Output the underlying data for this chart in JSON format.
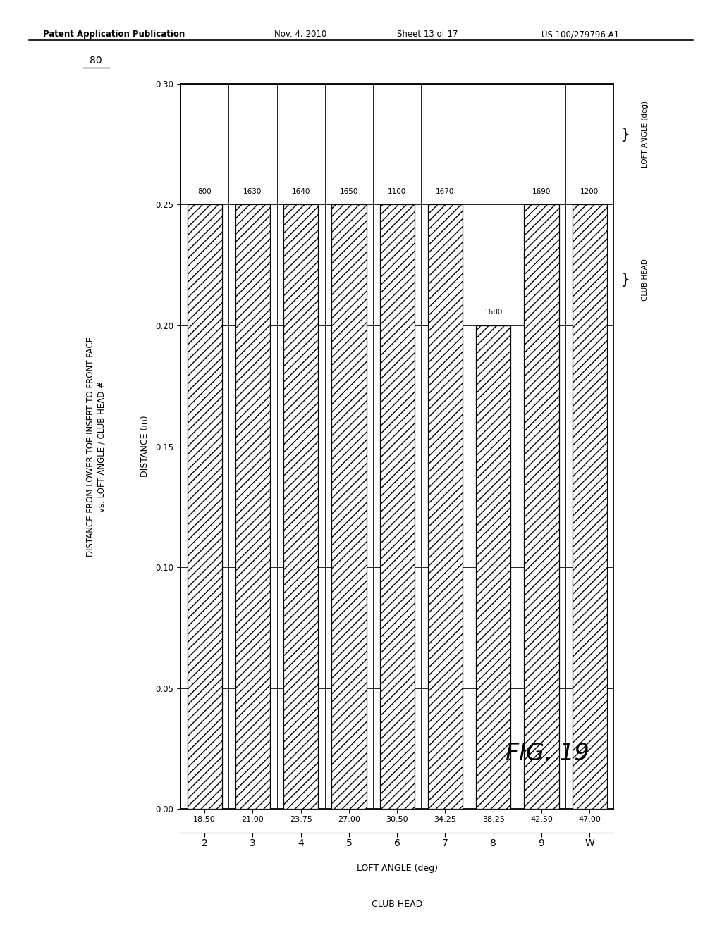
{
  "patent_header": "Patent Application Publication",
  "patent_date": "Nov. 4, 2010",
  "patent_sheet": "Sheet 13 of 17",
  "patent_number": "US 100/279796 A1",
  "chart_title_line1": "DISTANCE FROM LOWER TOE INSERT TO FRONT FACE",
  "chart_title_line2": "vs. LOFT ANGLE / CLUB HEAD #",
  "ylabel": "DISTANCE (in)",
  "xlabel_loft": "LOFT ANGLE (deg)",
  "xlabel_club": "CLUB HEAD",
  "figure_number": "FIG. 19",
  "figure_label": "80",
  "clubs": [
    "2",
    "3",
    "4",
    "5",
    "6",
    "7",
    "8",
    "9",
    "W"
  ],
  "loft_angles": [
    "18.50",
    "21.00",
    "23.75",
    "27.00",
    "30.50",
    "34.25",
    "38.25",
    "42.50",
    "47.00"
  ],
  "bar_labels": [
    "800",
    "1630",
    "1640",
    "1650",
    "1100",
    "1670",
    "1680",
    "1690",
    "1200"
  ],
  "distances": [
    0.25,
    0.25,
    0.25,
    0.25,
    0.25,
    0.25,
    0.2,
    0.25,
    0.25
  ],
  "ylim_min": 0.0,
  "ylim_max": 0.3,
  "yticks": [
    0.0,
    0.05,
    0.1,
    0.15,
    0.2,
    0.25,
    0.3
  ],
  "hatch": "///",
  "bar_facecolor": "#ffffff",
  "bar_edgecolor": "#000000",
  "bg_color": "#ffffff"
}
